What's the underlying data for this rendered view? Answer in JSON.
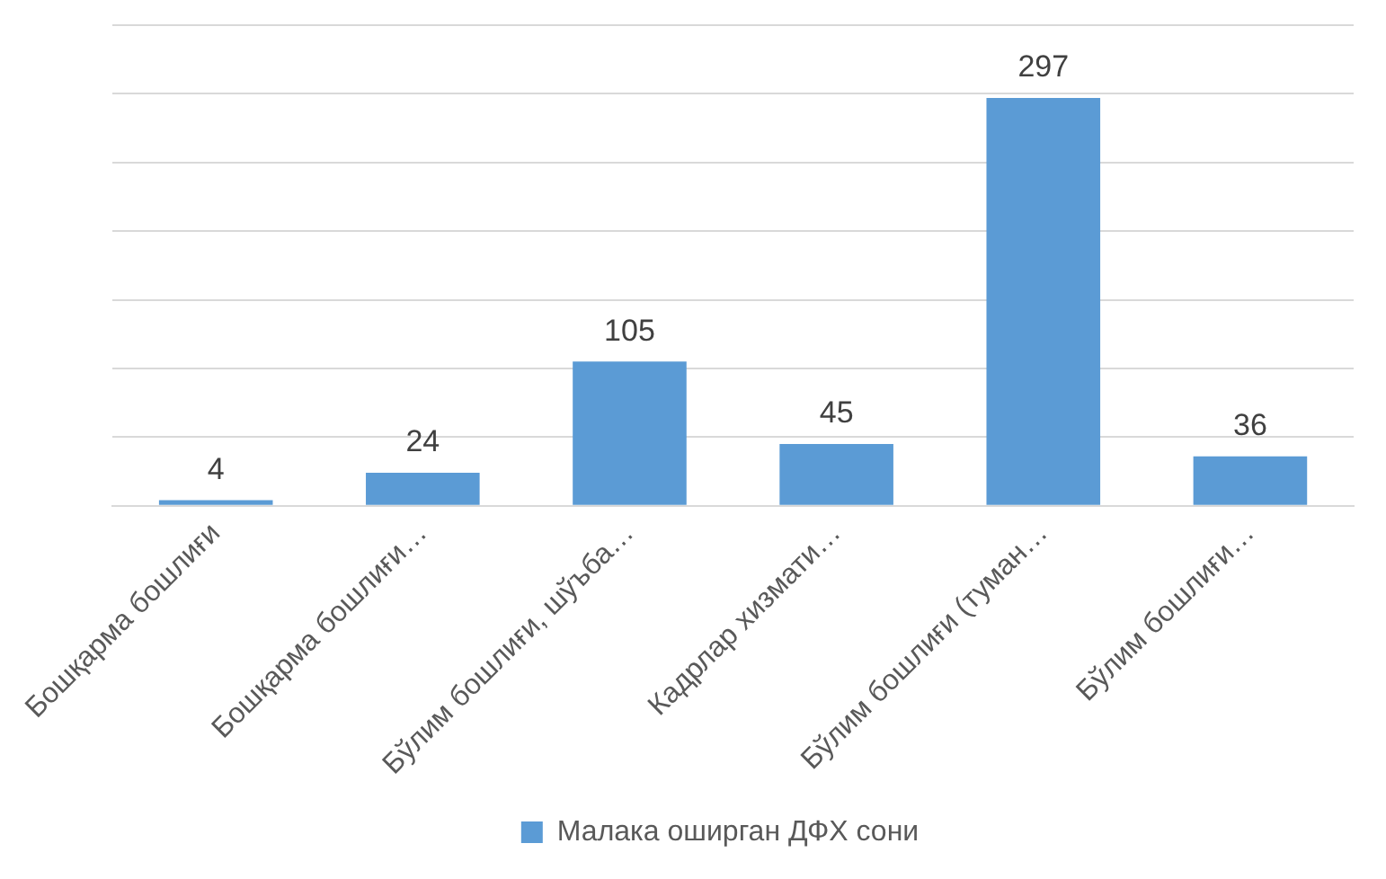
{
  "chart_data": {
    "type": "bar",
    "categories": [
      "Бошқарма бошлиғи",
      "Бошқарма бошлиғи…",
      "Бўлим бошлиғи, шўъба…",
      "Кадрлар хизмати…",
      "Бўлим бошлиғи (туман…",
      "Бўлим бошлиғи…"
    ],
    "series": [
      {
        "name": "Малака оширган ДФХ сони",
        "color": "#5b9bd5",
        "values": [
          4,
          24,
          105,
          45,
          297,
          36
        ]
      }
    ],
    "ylim": [
      0,
      350
    ],
    "yticks": [
      0,
      50,
      100,
      150,
      200,
      250,
      300,
      350
    ],
    "grid": "y",
    "tick_labels": "x",
    "legend": "bottom",
    "data_labels": true
  }
}
